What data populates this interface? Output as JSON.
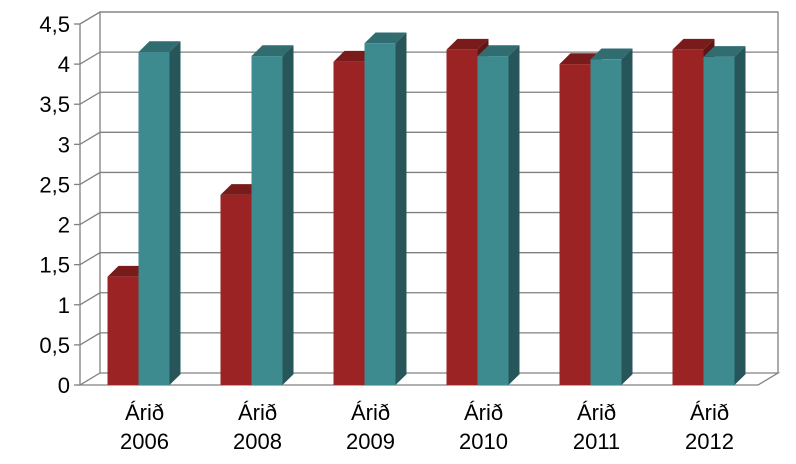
{
  "chart_data": {
    "type": "bar",
    "categories": [
      [
        "Árið",
        "2006"
      ],
      [
        "Árið",
        "2008"
      ],
      [
        "Árið",
        "2009"
      ],
      [
        "Árið",
        "2010"
      ],
      [
        "Árið",
        "2011"
      ],
      [
        "Árið",
        "2012"
      ]
    ],
    "series": [
      {
        "color": "#9b2323",
        "values": [
          1.35,
          2.37,
          4.03,
          4.18,
          4.0,
          4.18
        ]
      },
      {
        "color": "#3d8a8f",
        "values": [
          4.15,
          4.1,
          4.26,
          4.1,
          4.06,
          4.09
        ]
      }
    ],
    "ylim": [
      0,
      4.5
    ],
    "yticks": [
      "0",
      "0,5",
      "1",
      "1,5",
      "2",
      "2,5",
      "3",
      "3,5",
      "4",
      "4,5"
    ],
    "grid": true,
    "style": "3d-clustered-column",
    "title": "",
    "xlabel": "",
    "ylabel": ""
  }
}
